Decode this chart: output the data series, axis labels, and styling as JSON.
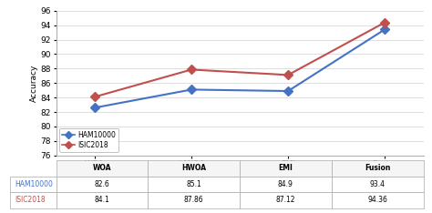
{
  "categories": [
    "WOA",
    "HWOA",
    "EMI",
    "Fusion"
  ],
  "ham10000": [
    82.6,
    85.1,
    84.9,
    93.4
  ],
  "isic2018": [
    84.1,
    87.86,
    87.12,
    94.36
  ],
  "ham_color": "#4472C4",
  "isic_color": "#C0504D",
  "ham_label": "HAM10000",
  "isic_label": "ISIC2018",
  "ylabel": "Accuracy",
  "ylim": [
    76,
    96
  ],
  "yticks": [
    76,
    78,
    80,
    82,
    84,
    86,
    88,
    90,
    92,
    94,
    96
  ],
  "marker": "D",
  "linewidth": 1.5,
  "markersize": 5,
  "table_ham": [
    "82.6",
    "85.1",
    "84.9",
    "93.4"
  ],
  "table_isic": [
    "84.1",
    "87.86",
    "87.12",
    "94.36"
  ],
  "background_color": "#ffffff",
  "grid_color": "#d0d0d0",
  "spine_color": "#aaaaaa"
}
